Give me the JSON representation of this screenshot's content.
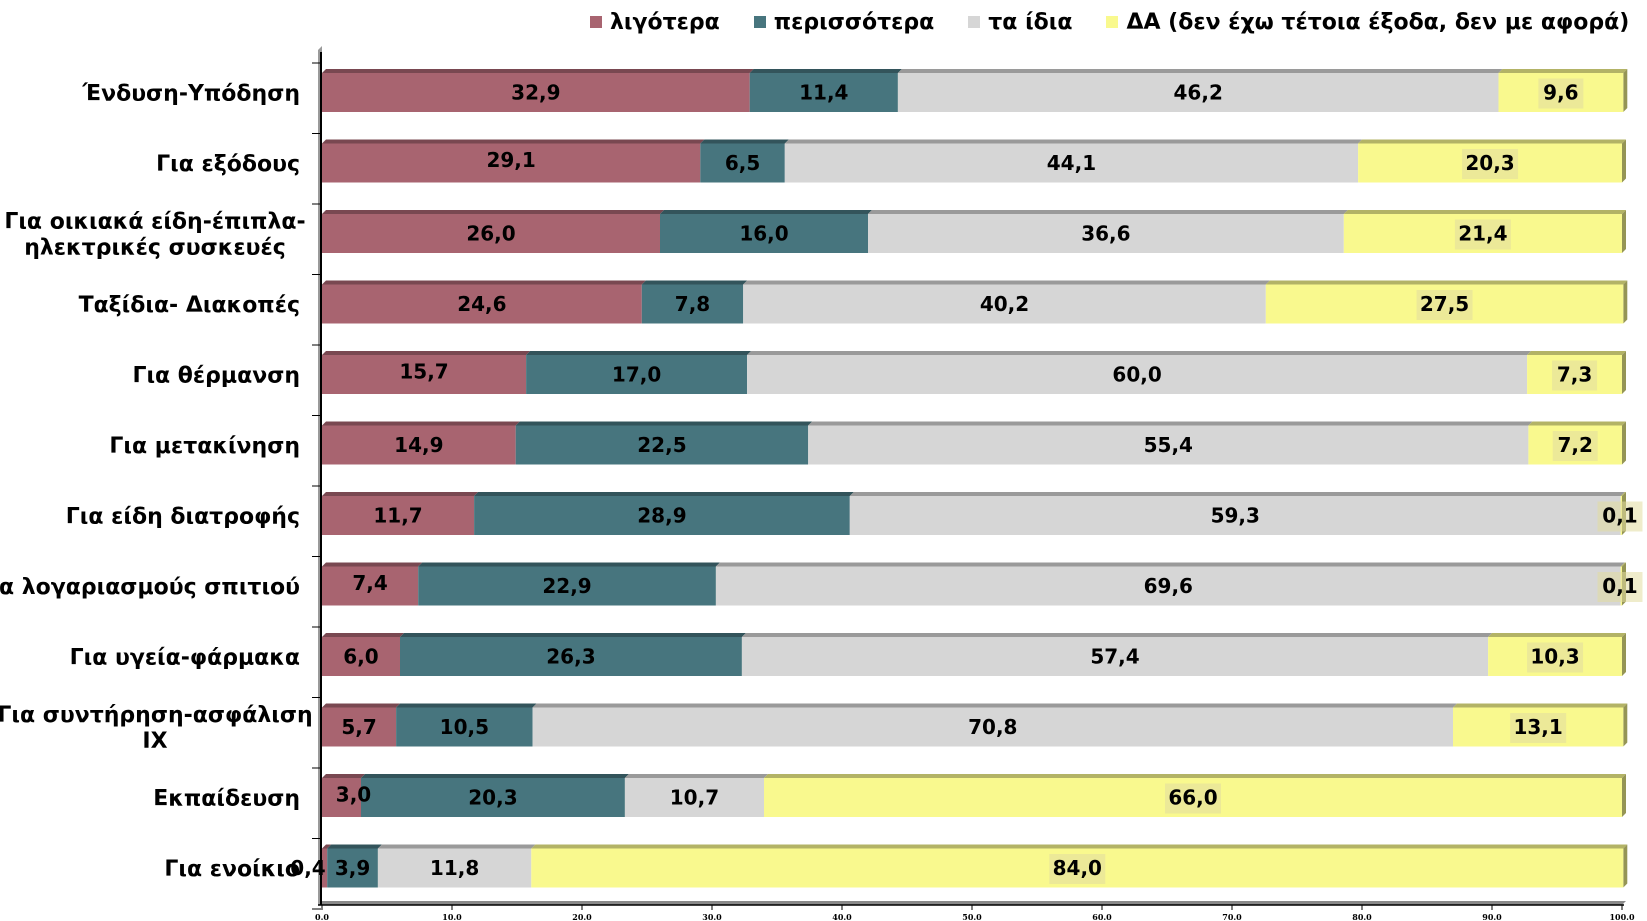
{
  "chart_data": {
    "type": "bar",
    "orientation": "horizontal",
    "stacked": true,
    "legend_position": "top",
    "grid": false,
    "xlim": [
      0,
      100
    ],
    "x_ticks": [
      "0.0",
      "10.0",
      "20.0",
      "30.0",
      "40.0",
      "50.0",
      "60.0",
      "70.0",
      "80.0",
      "90.0",
      "100.0"
    ],
    "categories": [
      "Ένδυση-Υπόδηση",
      "Για εξόδους",
      "Για οικιακά είδη-έπιπλα-ηλεκτρικές συσκευές",
      "Ταξίδια- Διακοπές",
      "Για θέρμανση",
      "Για μετακίνηση",
      "Για είδη διατροφής",
      "Για λογαριασμούς σπιτιού",
      "Για υγεία-φάρμακα",
      "Για συντήρηση-ασφάλιση ΙΧ",
      "Εκπαίδευση",
      "Για ενοίκιο"
    ],
    "category_lines": [
      [
        "Ένδυση-Υπόδηση"
      ],
      [
        "Για εξόδους"
      ],
      [
        "Για οικιακά είδη-έπιπλα-",
        "ηλεκτρικές συσκευές"
      ],
      [
        "Ταξίδια- Διακοπές"
      ],
      [
        "Για θέρμανση"
      ],
      [
        "Για μετακίνηση"
      ],
      [
        "Για είδη διατροφής"
      ],
      [
        "Για λογαριασμούς σπιτιού"
      ],
      [
        "Για υγεία-φάρμακα"
      ],
      [
        "Για συντήρηση-ασφάλιση",
        "ΙΧ"
      ],
      [
        "Εκπαίδευση"
      ],
      [
        "Για ενοίκιο"
      ]
    ],
    "series": [
      {
        "name": "λιγότερα",
        "color": "#A86470",
        "values": [
          32.9,
          29.1,
          26.0,
          24.6,
          15.7,
          14.9,
          11.7,
          7.4,
          6.0,
          5.7,
          3.0,
          0.4
        ],
        "labels": [
          "32,9",
          "29,1",
          "26,0",
          "24,6",
          "15,7",
          "14,9",
          "11,7",
          "7,4",
          "6,0",
          "5,7",
          "3,0",
          "0,4"
        ]
      },
      {
        "name": "περισσότερα",
        "color": "#47757E",
        "values": [
          11.4,
          6.5,
          16.0,
          7.8,
          17.0,
          22.5,
          28.9,
          22.9,
          26.3,
          10.5,
          20.3,
          3.9
        ],
        "labels": [
          "11,4",
          "6,5",
          "16,0",
          "7,8",
          "17,0",
          "22,5",
          "28,9",
          "22,9",
          "26,3",
          "10,5",
          "20,3",
          "3,9"
        ]
      },
      {
        "name": "τα ίδια",
        "color": "#D6D6D6",
        "values": [
          46.2,
          44.1,
          36.6,
          40.2,
          60.0,
          55.4,
          59.3,
          69.6,
          57.4,
          70.8,
          10.7,
          11.8
        ],
        "labels": [
          "46,2",
          "44,1",
          "36,6",
          "40,2",
          "60,0",
          "55,4",
          "59,3",
          "69,6",
          "57,4",
          "70,8",
          "10,7",
          "11,8"
        ]
      },
      {
        "name": "ΔΑ (δεν έχω τέτοια έξοδα, δεν με αφορά)",
        "color": "#F9F98E",
        "values": [
          9.6,
          20.3,
          21.4,
          27.5,
          7.3,
          7.2,
          0.1,
          0.1,
          10.3,
          13.1,
          66.0,
          84.0
        ],
        "labels": [
          "9,6",
          "20,3",
          "21,4",
          "27,5",
          "7,3",
          "7,2",
          "0,1",
          "0,1",
          "10,3",
          "13,1",
          "66,0",
          "84,0"
        ]
      }
    ]
  }
}
